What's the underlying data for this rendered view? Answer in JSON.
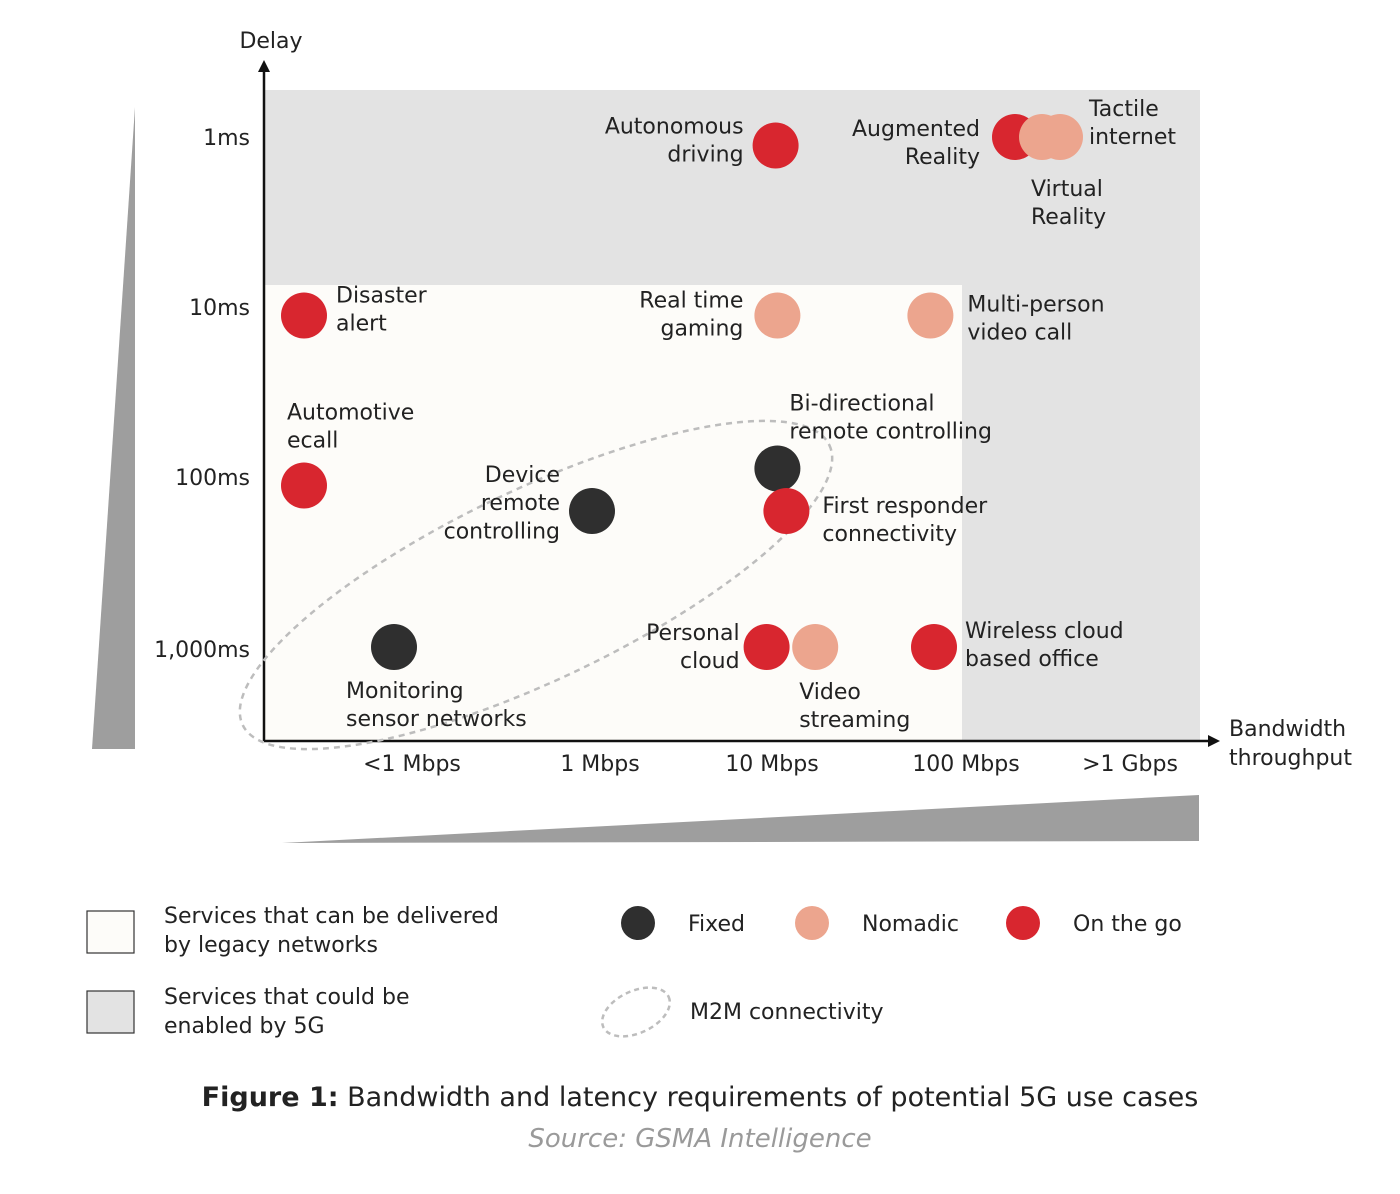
{
  "chart_data": {
    "type": "scatter",
    "xlabel": "Bandwidth\nthroughput",
    "ylabel": "Delay",
    "x_categories": [
      "<1 Mbps",
      "1 Mbps",
      "10 Mbps",
      "100 Mbps",
      ">1 Gbps"
    ],
    "y_categories": [
      "1ms",
      "10ms",
      "100ms",
      "1,000ms"
    ],
    "x_scale": "categorical-log",
    "y_scale": "categorical-log",
    "series": [
      {
        "name": "Fixed",
        "color": "#2f2f2f"
      },
      {
        "name": "Nomadic",
        "color": "#eca58e"
      },
      {
        "name": "On the go",
        "color": "#d8262f"
      }
    ],
    "points": [
      {
        "label": "Autonomous\ndriving",
        "series": "On the go",
        "x": 2.02,
        "y": 0.05
      },
      {
        "label": "Augmented\nReality",
        "series": "On the go",
        "x": 3.35,
        "y": 0.0
      },
      {
        "label": "Tactile\ninternet",
        "series": "Nomadic",
        "x": 3.6,
        "y": 0.0
      },
      {
        "label": "Virtual\nReality",
        "series": "Nomadic",
        "x": 3.5,
        "y": 0.0
      },
      {
        "label": "Disaster\nalert",
        "series": "On the go",
        "x": -0.6,
        "y": 1.05
      },
      {
        "label": "Real time\ngaming",
        "series": "Nomadic",
        "x": 2.03,
        "y": 1.05
      },
      {
        "label": "Multi-person\nvideo call",
        "series": "Nomadic",
        "x": 2.88,
        "y": 1.05
      },
      {
        "label": "Automotive\necall",
        "series": "On the go",
        "x": -0.6,
        "y": 2.05
      },
      {
        "label": "Bi-directional\nremote controlling",
        "series": "Fixed",
        "x": 2.03,
        "y": 1.95
      },
      {
        "label": "Device\nremote\ncontrolling",
        "series": "Fixed",
        "x": 1.0,
        "y": 2.2
      },
      {
        "label": "First responder\nconnectivity",
        "series": "On the go",
        "x": 2.08,
        "y": 2.2
      },
      {
        "label": "Monitoring\nsensor networks",
        "series": "Fixed",
        "x": -0.1,
        "y": 3.0
      },
      {
        "label": "Personal\ncloud",
        "series": "On the go",
        "x": 1.97,
        "y": 3.0
      },
      {
        "label": "Video\nstreaming",
        "series": "Nomadic",
        "x": 2.24,
        "y": 3.0
      },
      {
        "label": "Wireless cloud\nbased office",
        "series": "On the go",
        "x": 2.9,
        "y": 3.0
      }
    ],
    "regions": [
      {
        "name": "Services that can be delivered\nby legacy networks",
        "color": "#fdfcf9"
      },
      {
        "name": "Services that could be\nenabled by 5G",
        "color": "#e3e3e3"
      }
    ],
    "annotations": [
      {
        "name": "M2M connectivity",
        "style": "dashed-ellipse"
      }
    ],
    "legend": "bottom",
    "grid": false
  },
  "caption": {
    "prefix": "Figure 1:",
    "text": " Bandwidth and latency requirements of potential 5G use cases",
    "source": "Source: GSMA Intelligence"
  }
}
